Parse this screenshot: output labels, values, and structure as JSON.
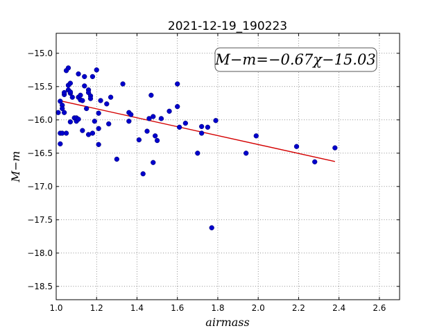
{
  "chart_data": {
    "type": "scatter",
    "title": "2021-12-19_190223",
    "xlabel": "airmass",
    "ylabel": "M−m",
    "xlim": [
      1.0,
      2.7
    ],
    "ylim": [
      -18.7,
      -14.7
    ],
    "y_inverted": true,
    "grid": true,
    "x_ticks": [
      "1.0",
      "1.2",
      "1.4",
      "1.6",
      "1.8",
      "2.0",
      "2.2",
      "2.4",
      "2.6"
    ],
    "y_ticks": [
      "−15.0",
      "−15.5",
      "−16.0",
      "−16.5",
      "−17.0",
      "−17.5",
      "−18.0",
      "−18.5"
    ],
    "annotation": "M−m=−0.67χ−15.03",
    "fit": {
      "slope": -0.67,
      "intercept": -15.03,
      "x_range": [
        1.02,
        2.38
      ],
      "color": "#d40000"
    },
    "point_color": "#0000cc",
    "points": [
      [
        1.01,
        -15.89
      ],
      [
        1.02,
        -15.72
      ],
      [
        1.02,
        -16.2
      ],
      [
        1.02,
        -16.36
      ],
      [
        1.03,
        -15.78
      ],
      [
        1.03,
        -15.83
      ],
      [
        1.03,
        -16.2
      ],
      [
        1.04,
        -15.62
      ],
      [
        1.04,
        -15.59
      ],
      [
        1.04,
        -15.89
      ],
      [
        1.05,
        -16.2
      ],
      [
        1.05,
        -15.26
      ],
      [
        1.06,
        -15.22
      ],
      [
        1.06,
        -15.48
      ],
      [
        1.06,
        -15.55
      ],
      [
        1.07,
        -15.45
      ],
      [
        1.07,
        -15.6
      ],
      [
        1.07,
        -15.58
      ],
      [
        1.07,
        -16.03
      ],
      [
        1.08,
        -15.66
      ],
      [
        1.09,
        -15.97
      ],
      [
        1.1,
        -16.02
      ],
      [
        1.1,
        -15.97
      ],
      [
        1.11,
        -15.31
      ],
      [
        1.11,
        -15.66
      ],
      [
        1.11,
        -15.99
      ],
      [
        1.12,
        -15.7
      ],
      [
        1.12,
        -15.63
      ],
      [
        1.13,
        -16.16
      ],
      [
        1.13,
        -15.71
      ],
      [
        1.14,
        -15.35
      ],
      [
        1.14,
        -15.49
      ],
      [
        1.15,
        -15.83
      ],
      [
        1.16,
        -15.55
      ],
      [
        1.16,
        -15.59
      ],
      [
        1.16,
        -16.22
      ],
      [
        1.17,
        -15.64
      ],
      [
        1.17,
        -15.68
      ],
      [
        1.18,
        -15.35
      ],
      [
        1.18,
        -16.2
      ],
      [
        1.19,
        -16.02
      ],
      [
        1.2,
        -15.25
      ],
      [
        1.21,
        -16.13
      ],
      [
        1.21,
        -15.9
      ],
      [
        1.21,
        -16.37
      ],
      [
        1.22,
        -15.71
      ],
      [
        1.25,
        -15.76
      ],
      [
        1.26,
        -16.06
      ],
      [
        1.27,
        -15.66
      ],
      [
        1.3,
        -16.59
      ],
      [
        1.33,
        -15.46
      ],
      [
        1.36,
        -15.89
      ],
      [
        1.36,
        -16.02
      ],
      [
        1.37,
        -15.92
      ],
      [
        1.41,
        -16.3
      ],
      [
        1.43,
        -16.81
      ],
      [
        1.45,
        -16.17
      ],
      [
        1.46,
        -15.98
      ],
      [
        1.47,
        -15.63
      ],
      [
        1.48,
        -15.95
      ],
      [
        1.48,
        -16.64
      ],
      [
        1.49,
        -16.24
      ],
      [
        1.5,
        -16.31
      ],
      [
        1.52,
        -15.98
      ],
      [
        1.56,
        -15.87
      ],
      [
        1.6,
        -15.8
      ],
      [
        1.6,
        -15.46
      ],
      [
        1.61,
        -16.11
      ],
      [
        1.64,
        -16.05
      ],
      [
        1.7,
        -16.5
      ],
      [
        1.72,
        -16.1
      ],
      [
        1.72,
        -16.2
      ],
      [
        1.75,
        -16.11
      ],
      [
        1.77,
        -17.62
      ],
      [
        1.79,
        -16.01
      ],
      [
        1.94,
        -16.5
      ],
      [
        1.99,
        -16.24
      ],
      [
        2.19,
        -16.4
      ],
      [
        2.28,
        -16.63
      ],
      [
        2.38,
        -16.42
      ]
    ]
  }
}
